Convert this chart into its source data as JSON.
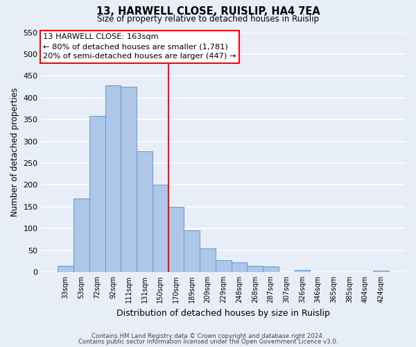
{
  "title": "13, HARWELL CLOSE, RUISLIP, HA4 7EA",
  "subtitle": "Size of property relative to detached houses in Ruislip",
  "xlabel": "Distribution of detached houses by size in Ruislip",
  "ylabel": "Number of detached properties",
  "bar_labels": [
    "33sqm",
    "53sqm",
    "72sqm",
    "92sqm",
    "111sqm",
    "131sqm",
    "150sqm",
    "170sqm",
    "189sqm",
    "209sqm",
    "229sqm",
    "248sqm",
    "268sqm",
    "287sqm",
    "307sqm",
    "326sqm",
    "346sqm",
    "365sqm",
    "385sqm",
    "404sqm",
    "424sqm"
  ],
  "bar_heights": [
    15,
    168,
    358,
    428,
    425,
    277,
    200,
    150,
    96,
    54,
    27,
    22,
    14,
    13,
    0,
    5,
    0,
    0,
    0,
    0,
    3
  ],
  "bar_color": "#aec6e8",
  "bar_edgecolor": "#5b9bd5",
  "annotation_line_color": "red",
  "annotation_box_text_line1": "13 HARWELL CLOSE: 163sqm",
  "annotation_box_text_line2": "← 80% of detached houses are smaller (1,781)",
  "annotation_box_text_line3": "20% of semi-detached houses are larger (447) →",
  "annotation_box_facecolor": "white",
  "annotation_box_edgecolor": "red",
  "ylim": [
    0,
    550
  ],
  "yticks": [
    0,
    50,
    100,
    150,
    200,
    250,
    300,
    350,
    400,
    450,
    500,
    550
  ],
  "footer_line1": "Contains HM Land Registry data © Crown copyright and database right 2024.",
  "footer_line2": "Contains public sector information licensed under the Open Government Licence v3.0.",
  "background_color": "#e8eef7",
  "grid_color": "#ffffff"
}
